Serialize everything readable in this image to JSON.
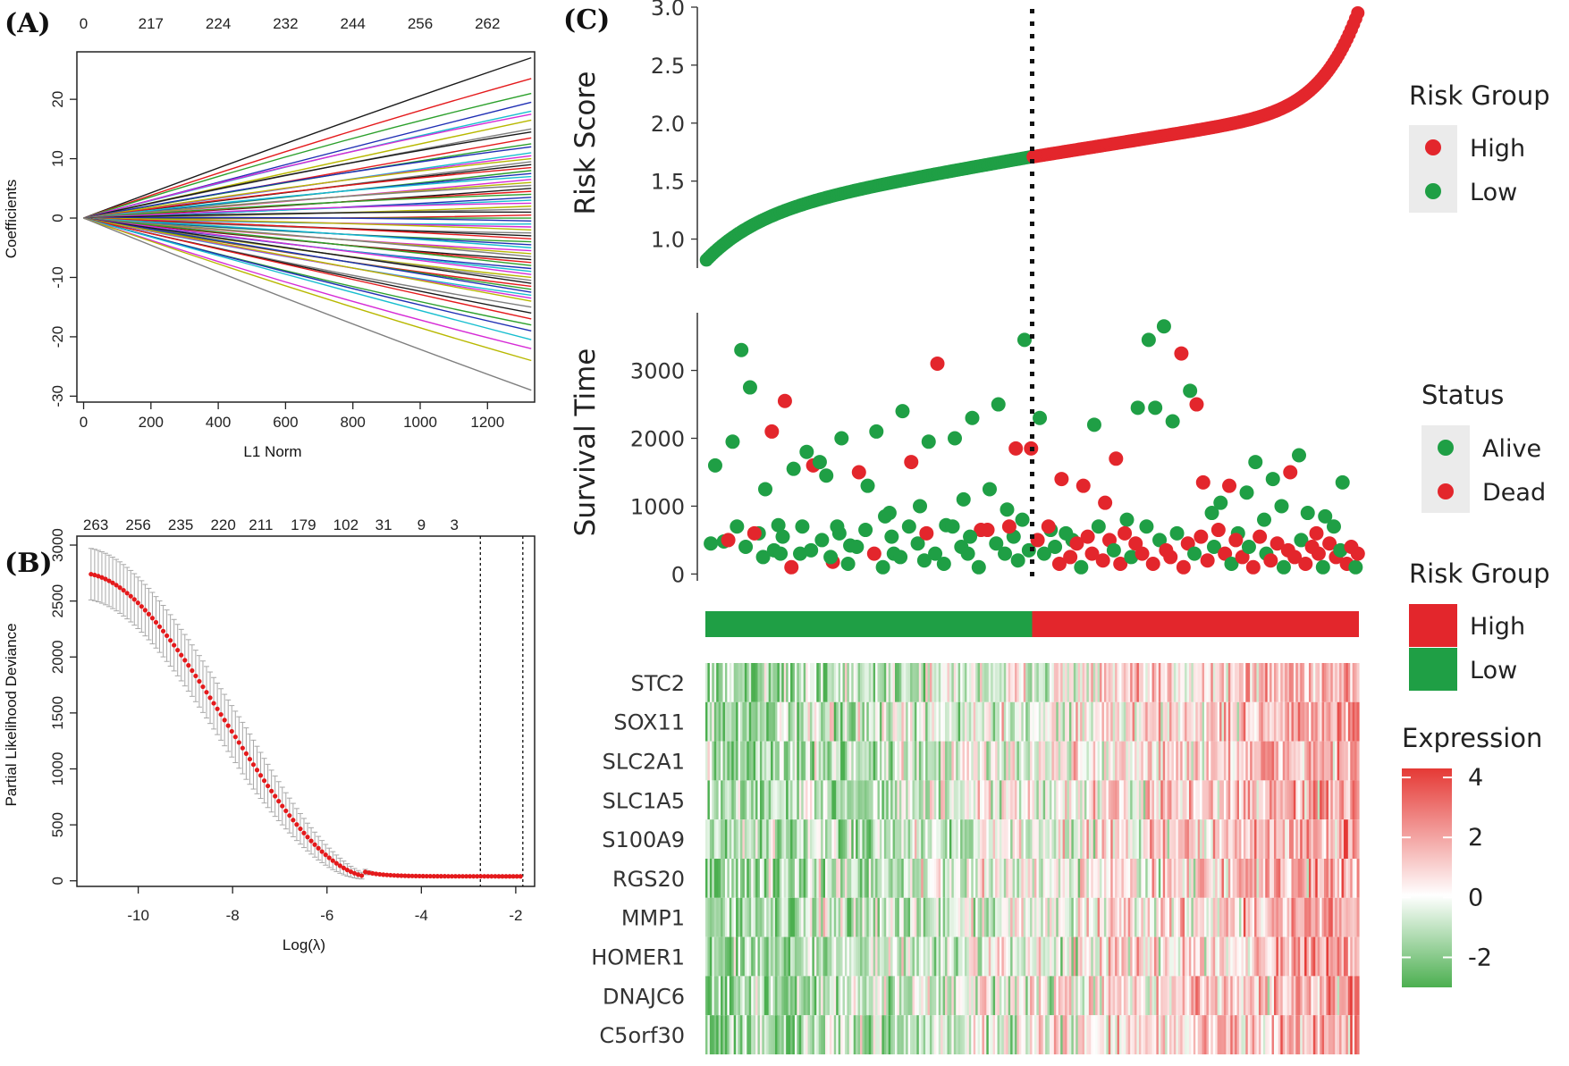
{
  "figure": {
    "panel_labels": [
      "(A)",
      "(B)",
      "(C)"
    ]
  },
  "chart_data": [
    {
      "id": "A",
      "type": "line",
      "title": "",
      "xlabel": "L1 Norm",
      "ylabel": "Coefficients",
      "xlim": [
        -20,
        1340
      ],
      "ylim": [
        -31,
        28
      ],
      "x_ticks": [
        0,
        200,
        400,
        600,
        800,
        1000,
        1200
      ],
      "y_ticks": [
        -30,
        -20,
        -10,
        0,
        10,
        20
      ],
      "top_axis_ticks": [
        {
          "x": 0,
          "label": "0"
        },
        {
          "x": 200,
          "label": "217"
        },
        {
          "x": 400,
          "label": "224"
        },
        {
          "x": 600,
          "label": "232"
        },
        {
          "x": 800,
          "label": "244"
        },
        {
          "x": 1000,
          "label": "256"
        },
        {
          "x": 1200,
          "label": "262"
        }
      ],
      "x_end": 1330,
      "series_endpoints": [
        27,
        23.5,
        21,
        19.5,
        18,
        17.5,
        16.5,
        15,
        14.5,
        13.5,
        12.5,
        12,
        11,
        10.5,
        10,
        9.5,
        9,
        8.5,
        8,
        7.5,
        7,
        6.5,
        6,
        5.5,
        5,
        4.5,
        4,
        3.5,
        3,
        2.5,
        2,
        1.5,
        1,
        0.5,
        0,
        -0.5,
        -1,
        -1.5,
        -2,
        -2.5,
        -3,
        -3.5,
        -4,
        -4.5,
        -5,
        -5.5,
        -6,
        -6.5,
        -7,
        -7.5,
        -8,
        -8.5,
        -9,
        -9.5,
        -10,
        -10.5,
        -11,
        -11.5,
        -12,
        -12.5,
        -13,
        -13.5,
        -14,
        -15,
        -16,
        -17,
        -18,
        -19,
        -20.5,
        -22,
        -24,
        -29
      ],
      "palette": [
        "#1a1a1a",
        "#e41a1c",
        "#2ca02c",
        "#1f2fb4",
        "#17becf",
        "#d62bd6",
        "#b8b800",
        "#7f7f7f"
      ]
    },
    {
      "id": "B",
      "type": "line",
      "title": "",
      "xlabel": "Log(λ)",
      "ylabel": "Partial Likelihood Deviance",
      "xlim": [
        -11.3,
        -1.6
      ],
      "ylim": [
        -50,
        3080
      ],
      "x_ticks": [
        -10,
        -8,
        -6,
        -4,
        -2
      ],
      "y_ticks": [
        0,
        500,
        1000,
        1500,
        2000,
        2500,
        3000
      ],
      "top_axis_ticks": [
        {
          "x": -10.9,
          "label": "263"
        },
        {
          "x": -10.0,
          "label": "256"
        },
        {
          "x": -9.1,
          "label": "235"
        },
        {
          "x": -8.2,
          "label": "220"
        },
        {
          "x": -7.4,
          "label": "211"
        },
        {
          "x": -6.5,
          "label": "179"
        },
        {
          "x": -5.6,
          "label": "102"
        },
        {
          "x": -4.8,
          "label": "31"
        },
        {
          "x": -4.0,
          "label": "9"
        },
        {
          "x": -3.3,
          "label": "3"
        }
      ],
      "vlines": [
        -2.75,
        -1.85
      ],
      "curve": {
        "x_start": -11.0,
        "x_end": -1.9,
        "points": 120,
        "y_start": 2740,
        "floor": 40,
        "knee": -5.2
      },
      "error_bar_halfwidth": 230,
      "marker_color": "#e41a1c",
      "errorbar_color": "#a8a8a8"
    },
    {
      "id": "C-risk",
      "type": "scatter",
      "title": "",
      "xlabel": "",
      "ylabel": "Risk Score",
      "ylim": [
        0.75,
        3.0
      ],
      "y_ticks": [
        1.0,
        1.5,
        2.0,
        2.5,
        3.0
      ],
      "n_samples": 300,
      "cutoff_index": 150,
      "low_range": [
        0.82,
        1.71
      ],
      "high_range": [
        1.71,
        2.95
      ],
      "colors": {
        "High": "#e3262c",
        "Low": "#1f9f45"
      }
    },
    {
      "id": "C-survival",
      "type": "scatter",
      "title": "",
      "xlabel": "",
      "ylabel": "Survival Time",
      "ylim": [
        -100,
        3850
      ],
      "y_ticks": [
        0,
        1000,
        2000,
        3000
      ],
      "n_samples": 300,
      "cutoff_index": 150,
      "points": [
        [
          4,
          1600,
          "Alive"
        ],
        [
          8,
          480,
          "Alive"
        ],
        [
          12,
          1950,
          "Alive"
        ],
        [
          16,
          3300,
          "Alive"
        ],
        [
          20,
          2750,
          "Alive"
        ],
        [
          24,
          600,
          "Alive"
        ],
        [
          27,
          1250,
          "Alive"
        ],
        [
          30,
          2100,
          "Dead"
        ],
        [
          33,
          720,
          "Alive"
        ],
        [
          36,
          2550,
          "Dead"
        ],
        [
          40,
          1550,
          "Alive"
        ],
        [
          43,
          300,
          "Alive"
        ],
        [
          46,
          1800,
          "Alive"
        ],
        [
          49,
          1600,
          "Dead"
        ],
        [
          52,
          1650,
          "Alive"
        ],
        [
          55,
          1450,
          "Alive"
        ],
        [
          58,
          180,
          "Dead"
        ],
        [
          62,
          2000,
          "Alive"
        ],
        [
          66,
          420,
          "Alive"
        ],
        [
          70,
          1500,
          "Dead"
        ],
        [
          74,
          1300,
          "Alive"
        ],
        [
          78,
          2100,
          "Alive"
        ],
        [
          82,
          850,
          "Alive"
        ],
        [
          86,
          300,
          "Alive"
        ],
        [
          90,
          2400,
          "Alive"
        ],
        [
          94,
          1650,
          "Dead"
        ],
        [
          98,
          1000,
          "Alive"
        ],
        [
          102,
          1950,
          "Alive"
        ],
        [
          106,
          3100,
          "Dead"
        ],
        [
          110,
          720,
          "Alive"
        ],
        [
          114,
          2000,
          "Alive"
        ],
        [
          118,
          1100,
          "Alive"
        ],
        [
          122,
          2300,
          "Alive"
        ],
        [
          126,
          650,
          "Dead"
        ],
        [
          130,
          1250,
          "Alive"
        ],
        [
          134,
          2500,
          "Alive"
        ],
        [
          138,
          950,
          "Alive"
        ],
        [
          142,
          1850,
          "Dead"
        ],
        [
          146,
          3450,
          "Alive"
        ],
        [
          149,
          1850,
          "Dead"
        ],
        [
          10,
          500,
          "Dead"
        ],
        [
          14,
          700,
          "Alive"
        ],
        [
          18,
          400,
          "Alive"
        ],
        [
          22,
          600,
          "Dead"
        ],
        [
          26,
          250,
          "Alive"
        ],
        [
          31,
          350,
          "Alive"
        ],
        [
          35,
          550,
          "Alive"
        ],
        [
          39,
          100,
          "Dead"
        ],
        [
          44,
          700,
          "Alive"
        ],
        [
          48,
          350,
          "Alive"
        ],
        [
          53,
          500,
          "Alive"
        ],
        [
          57,
          250,
          "Alive"
        ],
        [
          61,
          600,
          "Alive"
        ],
        [
          65,
          150,
          "Alive"
        ],
        [
          69,
          400,
          "Alive"
        ],
        [
          73,
          650,
          "Alive"
        ],
        [
          77,
          300,
          "Dead"
        ],
        [
          81,
          100,
          "Alive"
        ],
        [
          85,
          550,
          "Alive"
        ],
        [
          89,
          250,
          "Alive"
        ],
        [
          93,
          700,
          "Alive"
        ],
        [
          97,
          450,
          "Alive"
        ],
        [
          101,
          600,
          "Dead"
        ],
        [
          105,
          300,
          "Alive"
        ],
        [
          109,
          150,
          "Alive"
        ],
        [
          113,
          700,
          "Alive"
        ],
        [
          117,
          400,
          "Alive"
        ],
        [
          121,
          550,
          "Alive"
        ],
        [
          125,
          100,
          "Alive"
        ],
        [
          129,
          650,
          "Dead"
        ],
        [
          133,
          450,
          "Alive"
        ],
        [
          137,
          300,
          "Alive"
        ],
        [
          141,
          550,
          "Alive"
        ],
        [
          145,
          800,
          "Alive"
        ],
        [
          148,
          350,
          "Alive"
        ],
        [
          2,
          450,
          "Alive"
        ],
        [
          34,
          300,
          "Alive"
        ],
        [
          60,
          700,
          "Alive"
        ],
        [
          84,
          900,
          "Alive"
        ],
        [
          100,
          200,
          "Alive"
        ],
        [
          120,
          300,
          "Alive"
        ],
        [
          139,
          700,
          "Dead"
        ],
        [
          143,
          200,
          "Alive"
        ],
        [
          153,
          2300,
          "Alive"
        ],
        [
          158,
          650,
          "Alive"
        ],
        [
          163,
          1400,
          "Dead"
        ],
        [
          168,
          500,
          "Alive"
        ],
        [
          173,
          1300,
          "Dead"
        ],
        [
          178,
          2200,
          "Alive"
        ],
        [
          183,
          1050,
          "Dead"
        ],
        [
          188,
          1700,
          "Dead"
        ],
        [
          193,
          800,
          "Alive"
        ],
        [
          198,
          2450,
          "Alive"
        ],
        [
          203,
          3450,
          "Alive"
        ],
        [
          206,
          2450,
          "Alive"
        ],
        [
          210,
          3650,
          "Alive"
        ],
        [
          214,
          2250,
          "Alive"
        ],
        [
          218,
          3250,
          "Dead"
        ],
        [
          222,
          2700,
          "Alive"
        ],
        [
          225,
          2500,
          "Dead"
        ],
        [
          228,
          1350,
          "Dead"
        ],
        [
          232,
          900,
          "Alive"
        ],
        [
          236,
          1050,
          "Alive"
        ],
        [
          240,
          1300,
          "Dead"
        ],
        [
          244,
          600,
          "Alive"
        ],
        [
          248,
          1200,
          "Alive"
        ],
        [
          252,
          1650,
          "Alive"
        ],
        [
          256,
          800,
          "Alive"
        ],
        [
          260,
          1400,
          "Alive"
        ],
        [
          264,
          1000,
          "Alive"
        ],
        [
          268,
          1500,
          "Dead"
        ],
        [
          272,
          1750,
          "Alive"
        ],
        [
          276,
          900,
          "Alive"
        ],
        [
          280,
          600,
          "Dead"
        ],
        [
          284,
          850,
          "Alive"
        ],
        [
          288,
          700,
          "Alive"
        ],
        [
          292,
          1350,
          "Alive"
        ],
        [
          152,
          500,
          "Dead"
        ],
        [
          155,
          300,
          "Alive"
        ],
        [
          157,
          700,
          "Dead"
        ],
        [
          160,
          400,
          "Alive"
        ],
        [
          162,
          150,
          "Dead"
        ],
        [
          165,
          600,
          "Alive"
        ],
        [
          167,
          250,
          "Dead"
        ],
        [
          170,
          450,
          "Dead"
        ],
        [
          172,
          100,
          "Alive"
        ],
        [
          175,
          550,
          "Dead"
        ],
        [
          177,
          300,
          "Dead"
        ],
        [
          180,
          700,
          "Alive"
        ],
        [
          182,
          200,
          "Dead"
        ],
        [
          185,
          500,
          "Dead"
        ],
        [
          187,
          350,
          "Alive"
        ],
        [
          190,
          150,
          "Dead"
        ],
        [
          192,
          600,
          "Dead"
        ],
        [
          195,
          250,
          "Alive"
        ],
        [
          197,
          450,
          "Dead"
        ],
        [
          200,
          300,
          "Dead"
        ],
        [
          202,
          700,
          "Alive"
        ],
        [
          205,
          150,
          "Dead"
        ],
        [
          208,
          500,
          "Alive"
        ],
        [
          211,
          350,
          "Dead"
        ],
        [
          213,
          250,
          "Dead"
        ],
        [
          216,
          600,
          "Alive"
        ],
        [
          219,
          100,
          "Dead"
        ],
        [
          221,
          450,
          "Dead"
        ],
        [
          224,
          300,
          "Alive"
        ],
        [
          227,
          550,
          "Dead"
        ],
        [
          230,
          200,
          "Dead"
        ],
        [
          233,
          400,
          "Alive"
        ],
        [
          235,
          650,
          "Dead"
        ],
        [
          238,
          300,
          "Dead"
        ],
        [
          241,
          150,
          "Alive"
        ],
        [
          243,
          500,
          "Dead"
        ],
        [
          246,
          250,
          "Dead"
        ],
        [
          249,
          400,
          "Alive"
        ],
        [
          251,
          100,
          "Dead"
        ],
        [
          254,
          550,
          "Dead"
        ],
        [
          257,
          300,
          "Alive"
        ],
        [
          259,
          200,
          "Dead"
        ],
        [
          262,
          450,
          "Dead"
        ],
        [
          265,
          100,
          "Alive"
        ],
        [
          267,
          350,
          "Dead"
        ],
        [
          270,
          250,
          "Dead"
        ],
        [
          273,
          500,
          "Alive"
        ],
        [
          275,
          150,
          "Dead"
        ],
        [
          278,
          400,
          "Dead"
        ],
        [
          281,
          300,
          "Dead"
        ],
        [
          283,
          100,
          "Alive"
        ],
        [
          286,
          450,
          "Dead"
        ],
        [
          289,
          250,
          "Dead"
        ],
        [
          291,
          350,
          "Alive"
        ],
        [
          294,
          150,
          "Dead"
        ],
        [
          296,
          400,
          "Dead"
        ],
        [
          298,
          100,
          "Alive"
        ],
        [
          299,
          300,
          "Dead"
        ]
      ],
      "colors": {
        "Alive": "#1f9f45",
        "Dead": "#e3262c"
      }
    },
    {
      "id": "C-heatmap",
      "type": "heatmap",
      "title": "",
      "rows": [
        "STC2",
        "SOX11",
        "SLC2A1",
        "SLC1A5",
        "S100A9",
        "RGS20",
        "MMP1",
        "HOMER1",
        "DNAJC6",
        "C5orf30"
      ],
      "n_columns": 300,
      "risk_bar": {
        "split_fraction": 0.5,
        "low_color": "#1f9f45",
        "high_color": "#e3262c"
      },
      "color_scale": {
        "min": -3,
        "max": 4.3,
        "ticks": [
          4,
          2,
          0,
          -2
        ],
        "low": "#4caf50",
        "mid": "#ffffff",
        "high": "#e53935"
      }
    }
  ],
  "legends": {
    "risk_group_points": {
      "title": "Risk Group",
      "items": [
        "High",
        "Low"
      ]
    },
    "status": {
      "title": "Status",
      "items": [
        "Alive",
        "Dead"
      ]
    },
    "risk_group_bar": {
      "title": "Risk Group",
      "items": [
        "High",
        "Low"
      ]
    },
    "expression": {
      "title": "Expression",
      "ticks": [
        "4",
        "2",
        "0",
        "-2"
      ]
    }
  },
  "colors": {
    "high": "#e3262c",
    "low": "#1f9f45",
    "legend_key_bg": "#ebebeb"
  }
}
